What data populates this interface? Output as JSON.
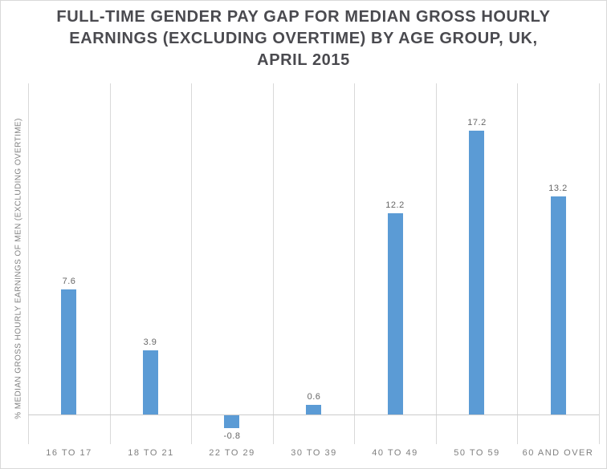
{
  "frame": {
    "background_color": "#FFFFFF",
    "border_color": "#D9D9D9"
  },
  "chart_data": {
    "type": "bar",
    "title": "FULL-TIME GENDER PAY GAP FOR MEDIAN GROSS HOURLY EARNINGS (EXCLUDING OVERTIME) BY AGE GROUP, UK, APRIL 2015",
    "title_lines": [
      "FULL-TIME GENDER PAY GAP FOR MEDIAN GROSS HOURLY",
      "EARNINGS (EXCLUDING OVERTIME) BY AGE GROUP, UK,",
      "APRIL 2015"
    ],
    "categories": [
      "16 TO 17",
      "18 TO 21",
      "22 TO 29",
      "30 TO 39",
      "40 TO 49",
      "50 TO 59",
      "60 AND OVER"
    ],
    "values": [
      7.6,
      3.9,
      -0.8,
      0.6,
      12.2,
      17.2,
      13.2
    ],
    "data_labels": [
      "7.6",
      "3.9",
      "-0.8",
      "0.6",
      "12.2",
      "17.2",
      "13.2"
    ],
    "xlabel": "",
    "ylabel": "% MEDIAN GROSS HOURLY EARNINGS OF MEN (EXCLUDING OVERTIME)",
    "ylim": [
      -2,
      20
    ],
    "y_tick_labels_visible": false,
    "grid": "vertical category separators only",
    "legend_position": "none",
    "bar_color": "#5B9BD5",
    "gridline_color": "#D9D9D9",
    "axis_line_color": "#CCCCCC",
    "title_color": "#4A4A4F",
    "data_label_color": "#666666",
    "tick_label_color": "#7F7F7F"
  }
}
